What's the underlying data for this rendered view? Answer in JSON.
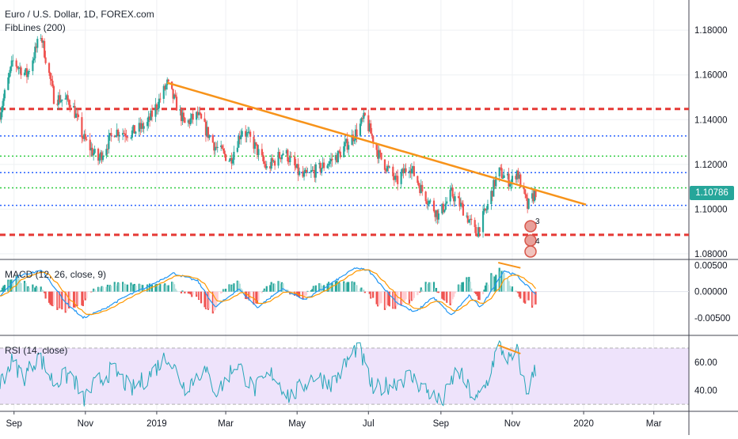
{
  "header": {
    "title": "Euro / U.S. Dollar, 1D, FOREX.com",
    "indicator": "FibLines (200)"
  },
  "price_badge": "1.10786",
  "macd_label": "MACD (12, 26, close, 9)",
  "rsi_label": "RSI (14, close)",
  "colors": {
    "up": "#26a69a",
    "down": "#ef5350",
    "trendline": "#f7931a",
    "support_resistance": "#e53935",
    "fib_blue": "#2962ff",
    "fib_green": "#2ecc40",
    "macd_line": "#2196f3",
    "signal_line": "#ff9800",
    "rsi_line": "#26a6b8",
    "rsi_band": "#eee3fb"
  },
  "chart_data": [
    {
      "type": "candlestick",
      "title": "Euro / U.S. Dollar, 1D, FOREX.com",
      "x_ticks": [
        "Sep",
        "Nov",
        "2019",
        "Mar",
        "May",
        "Jul",
        "Sep",
        "Nov",
        "2020",
        "Mar"
      ],
      "x_range": [
        "2018-08-20",
        "2020-03-31"
      ],
      "y_ticks": [
        "1.18000",
        "1.16000",
        "1.14000",
        "1.12000",
        "1.10000",
        "1.08000"
      ],
      "ylim": [
        1.0775,
        1.1935
      ],
      "last_price": 1.10786,
      "close_path": [
        [
          "2018-08-20",
          1.143
        ],
        [
          "2018-08-31",
          1.166
        ],
        [
          "2018-09-12",
          1.16
        ],
        [
          "2018-09-24",
          1.178
        ],
        [
          "2018-10-05",
          1.15
        ],
        [
          "2018-10-20",
          1.148
        ],
        [
          "2018-10-30",
          1.132
        ],
        [
          "2018-11-12",
          1.122
        ],
        [
          "2018-11-26",
          1.135
        ],
        [
          "2018-12-10",
          1.134
        ],
        [
          "2018-12-24",
          1.138
        ],
        [
          "2019-01-10",
          1.156
        ],
        [
          "2019-01-25",
          1.138
        ],
        [
          "2019-02-05",
          1.142
        ],
        [
          "2019-02-20",
          1.128
        ],
        [
          "2019-03-05",
          1.122
        ],
        [
          "2019-03-15",
          1.136
        ],
        [
          "2019-03-25",
          1.129
        ],
        [
          "2019-04-05",
          1.118
        ],
        [
          "2019-04-20",
          1.126
        ],
        [
          "2019-05-05",
          1.114
        ],
        [
          "2019-05-20",
          1.118
        ],
        [
          "2019-06-05",
          1.124
        ],
        [
          "2019-06-20",
          1.134
        ],
        [
          "2019-06-28",
          1.141
        ],
        [
          "2019-07-10",
          1.124
        ],
        [
          "2019-07-25",
          1.112
        ],
        [
          "2019-08-05",
          1.12
        ],
        [
          "2019-08-15",
          1.109
        ],
        [
          "2019-08-30",
          1.097
        ],
        [
          "2019-09-10",
          1.107
        ],
        [
          "2019-09-20",
          1.1
        ],
        [
          "2019-10-01",
          1.089
        ],
        [
          "2019-10-10",
          1.1
        ],
        [
          "2019-10-20",
          1.117
        ],
        [
          "2019-10-31",
          1.112
        ],
        [
          "2019-11-05",
          1.117
        ],
        [
          "2019-11-14",
          1.101
        ],
        [
          "2019-11-21",
          1.10786
        ]
      ],
      "trendline": [
        [
          "2019-01-10",
          1.1565
        ],
        [
          "2020-01-03",
          1.102
        ]
      ],
      "horizontal_lines": [
        {
          "value": 1.1448,
          "style": "red-dashed"
        },
        {
          "value": 1.1327,
          "style": "blue-dotted"
        },
        {
          "value": 1.1237,
          "style": "green-dotted"
        },
        {
          "value": 1.1163,
          "style": "blue-dotted"
        },
        {
          "value": 1.1095,
          "style": "green-dotted"
        },
        {
          "value": 1.1017,
          "style": "blue-dotted"
        },
        {
          "value": 1.0885,
          "style": "red-dashed"
        }
      ],
      "event_badges": [
        "3",
        "4"
      ]
    },
    {
      "type": "histogram",
      "name": "MACD (12, 26, close, 9)",
      "y_ticks": [
        "0.00500",
        "0.00000",
        "-0.00500"
      ],
      "ylim": [
        -0.0083,
        0.0061
      ],
      "macd_path": [
        [
          "2018-08-20",
          -0.001
        ],
        [
          "2018-09-05",
          0.003
        ],
        [
          "2018-09-25",
          0.004
        ],
        [
          "2018-10-15",
          -0.002
        ],
        [
          "2018-10-30",
          -0.005
        ],
        [
          "2018-11-15",
          -0.0035
        ],
        [
          "2018-12-05",
          -0.001
        ],
        [
          "2018-12-25",
          0.001
        ],
        [
          "2019-01-15",
          0.0035
        ],
        [
          "2019-02-05",
          0.002
        ],
        [
          "2019-02-20",
          -0.003
        ],
        [
          "2019-03-12",
          0.0005
        ],
        [
          "2019-03-28",
          -0.003
        ],
        [
          "2019-04-18",
          0.0005
        ],
        [
          "2019-05-08",
          -0.0015
        ],
        [
          "2019-05-25",
          0.0008
        ],
        [
          "2019-06-20",
          0.0045
        ],
        [
          "2019-07-01",
          0.004
        ],
        [
          "2019-07-25",
          -0.002
        ],
        [
          "2019-08-10",
          -0.004
        ],
        [
          "2019-08-25",
          -0.001
        ],
        [
          "2019-09-10",
          -0.0045
        ],
        [
          "2019-09-25",
          -0.0008
        ],
        [
          "2019-10-05",
          -0.003
        ],
        [
          "2019-10-25",
          0.004
        ],
        [
          "2019-11-05",
          0.003
        ],
        [
          "2019-11-21",
          -0.0005
        ]
      ]
    },
    {
      "type": "line",
      "name": "RSI (14, close)",
      "y_ticks": [
        "60.00",
        "40.00"
      ],
      "ylim": [
        25,
        79
      ],
      "upper_band": 70,
      "lower_band": 30,
      "rsi_path": [
        [
          "2018-08-20",
          45
        ],
        [
          "2018-08-30",
          60
        ],
        [
          "2018-09-10",
          50
        ],
        [
          "2018-09-22",
          65
        ],
        [
          "2018-10-05",
          45
        ],
        [
          "2018-10-20",
          52
        ],
        [
          "2018-10-30",
          33
        ],
        [
          "2018-11-10",
          45
        ],
        [
          "2018-11-25",
          55
        ],
        [
          "2018-12-10",
          40
        ],
        [
          "2018-12-25",
          50
        ],
        [
          "2019-01-10",
          65
        ],
        [
          "2019-01-25",
          42
        ],
        [
          "2019-02-10",
          55
        ],
        [
          "2019-02-22",
          38
        ],
        [
          "2019-03-10",
          60
        ],
        [
          "2019-03-25",
          40
        ],
        [
          "2019-04-10",
          52
        ],
        [
          "2019-04-25",
          35
        ],
        [
          "2019-05-15",
          50
        ],
        [
          "2019-06-01",
          45
        ],
        [
          "2019-06-22",
          72
        ],
        [
          "2019-07-05",
          40
        ],
        [
          "2019-07-22",
          45
        ],
        [
          "2019-08-05",
          50
        ],
        [
          "2019-08-20",
          40
        ],
        [
          "2019-09-01",
          30
        ],
        [
          "2019-09-15",
          55
        ],
        [
          "2019-10-01",
          32
        ],
        [
          "2019-10-10",
          45
        ],
        [
          "2019-10-20",
          72
        ],
        [
          "2019-10-31",
          60
        ],
        [
          "2019-11-05",
          68
        ],
        [
          "2019-11-13",
          38
        ],
        [
          "2019-11-21",
          55
        ]
      ]
    }
  ]
}
